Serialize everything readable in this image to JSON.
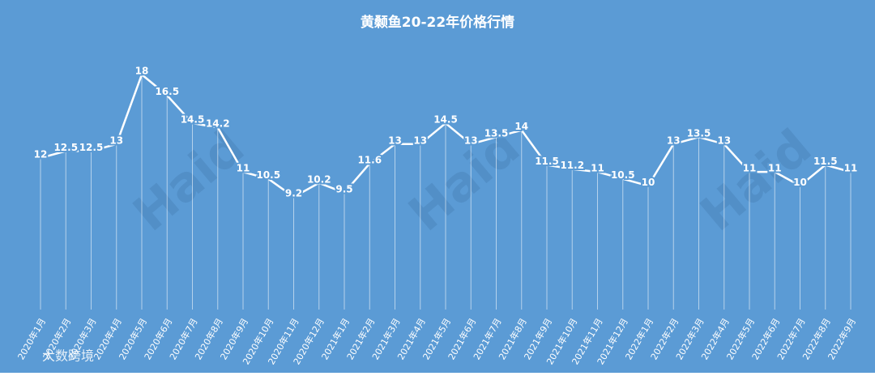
{
  "chart_data": {
    "type": "line",
    "title": "黄颡鱼20-22年价格行情",
    "categories": [
      "2020年1月",
      "2020年2月",
      "2020年3月",
      "2020年4月",
      "2020年5月",
      "2020年6月",
      "2020年7月",
      "2020年8月",
      "2020年9月",
      "2020年10月",
      "2020年11月",
      "2020年12月",
      "2021年1月",
      "2021年2月",
      "2021年3月",
      "2021年4月",
      "2021年5月",
      "2021年6月",
      "2021年7月",
      "2021年8月",
      "2021年9月",
      "2021年10月",
      "2021年11月",
      "2021年12月",
      "2022年1月",
      "2022年2月",
      "2022年3月",
      "2022年4月",
      "2022年5月",
      "2022年6月",
      "2022年7月",
      "2022年8月",
      "2022年9月"
    ],
    "values": [
      12,
      12.5,
      12.5,
      13,
      18,
      16.5,
      14.5,
      14.2,
      11,
      10.5,
      9.2,
      10.2,
      9.5,
      11.6,
      13,
      13,
      14.5,
      13,
      13.5,
      14,
      11.5,
      11.2,
      11,
      10.5,
      10,
      13,
      13.5,
      13,
      11,
      11,
      10,
      11.5,
      11
    ],
    "color": "#ffffff",
    "background": "#5b9bd5"
  },
  "watermark": "Haid",
  "logo": "大数跨境"
}
